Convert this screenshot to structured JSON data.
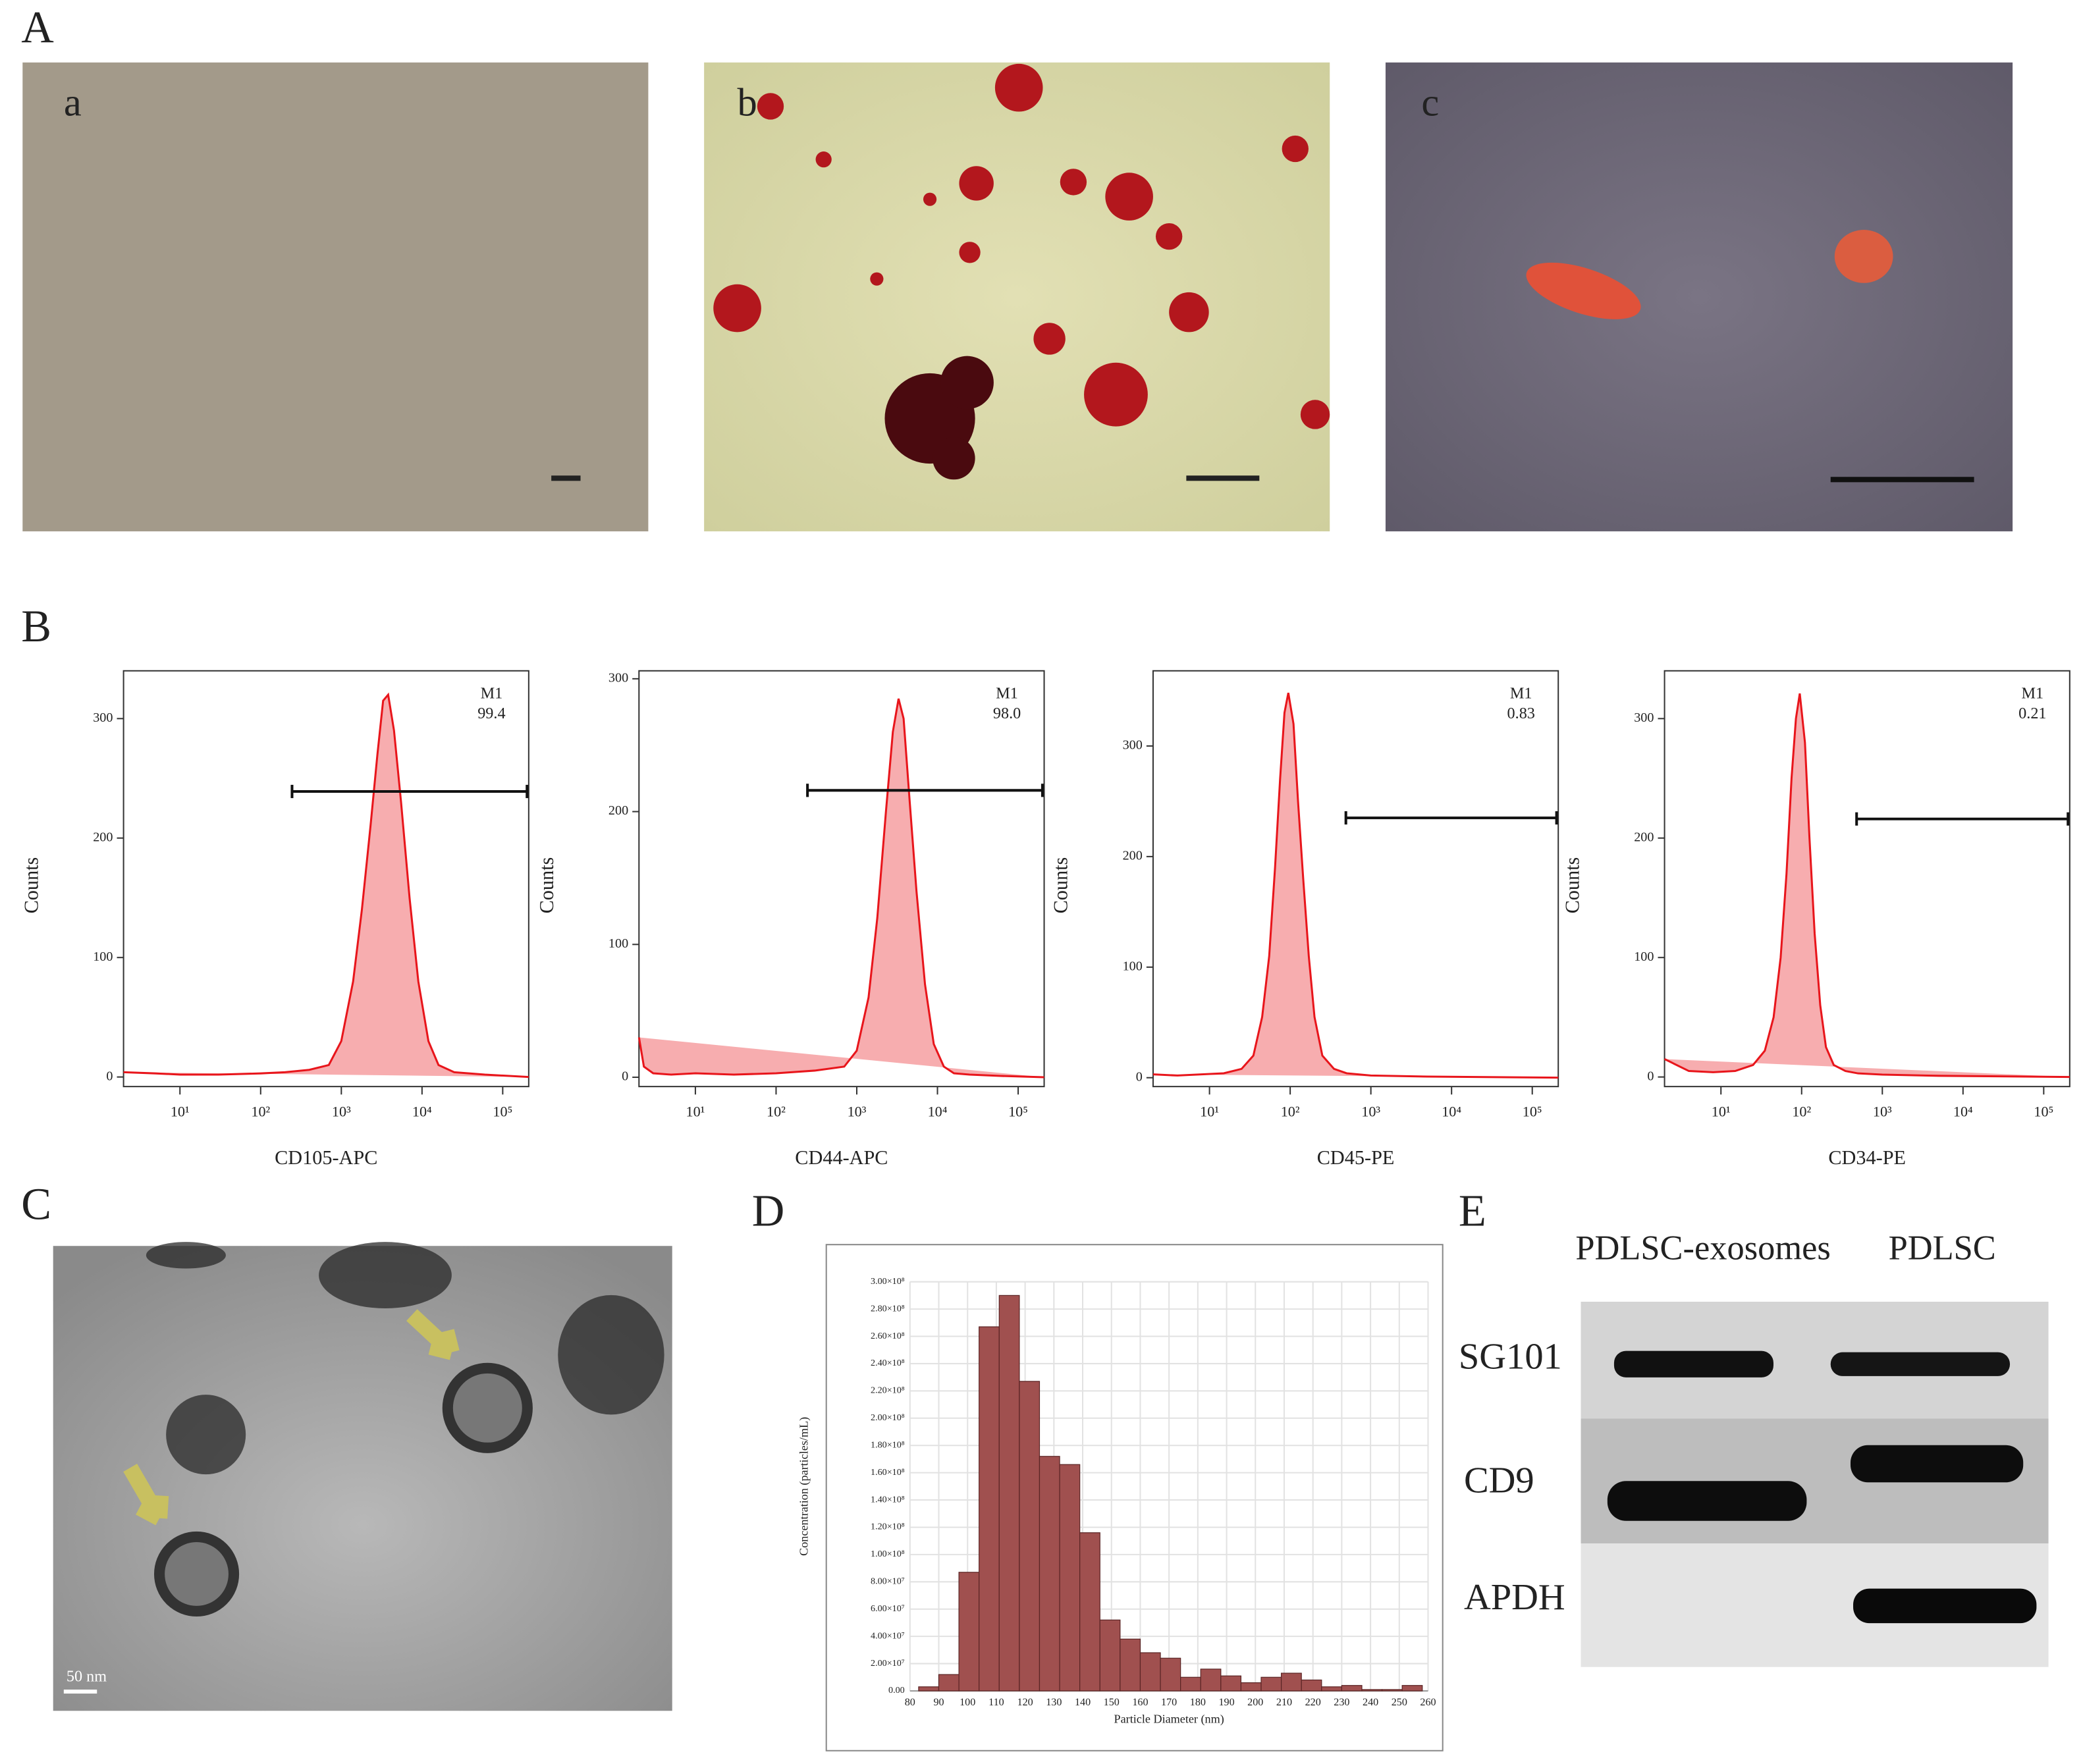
{
  "panel_A": {
    "label": "A",
    "images": [
      "a",
      "b",
      "c"
    ]
  },
  "panel_B": {
    "label": "B"
  },
  "panel_C": {
    "label": "C",
    "scale_bar": "50 nm"
  },
  "panel_D": {
    "label": "D"
  },
  "panel_E": {
    "label": "E",
    "columns": [
      "PDLSC-exosomes",
      "PDLSC"
    ],
    "rows": [
      "SG101",
      "CD9",
      "APDH"
    ]
  },
  "chart_data": [
    {
      "type": "area",
      "x_label": "CD105-APC",
      "y_label": "Counts",
      "log_x": true,
      "color": "#e8151b",
      "xlim": [
        2,
        210000
      ],
      "ylim": [
        -8,
        340
      ],
      "xticks": [
        {
          "value": 10,
          "label": "10¹"
        },
        {
          "value": 100,
          "label": "10²"
        },
        {
          "value": 1000,
          "label": "10³"
        },
        {
          "value": 10000,
          "label": "10⁴"
        },
        {
          "value": 100000,
          "label": "10⁵"
        }
      ],
      "yticks": [
        0,
        100,
        200,
        300
      ],
      "x": [
        2,
        5,
        10,
        30,
        100,
        200,
        400,
        700,
        1000,
        1400,
        1800,
        2300,
        2800,
        3300,
        3800,
        4500,
        5500,
        7000,
        9000,
        12000,
        16000,
        25000,
        60000,
        210000
      ],
      "values": [
        4,
        3,
        2,
        2,
        3,
        4,
        6,
        10,
        30,
        80,
        140,
        210,
        270,
        315,
        320,
        290,
        230,
        150,
        80,
        30,
        10,
        4,
        2,
        0
      ],
      "gate_label": "M1",
      "gate_value": "99.4",
      "gate_x": [
        245,
        200000
      ],
      "gate_y": 239
    },
    {
      "type": "area",
      "x_label": "CD44-APC",
      "y_label": "Counts",
      "log_x": true,
      "color": "#e8151b",
      "xlim": [
        2,
        210000
      ],
      "ylim": [
        -7,
        306
      ],
      "xticks": [
        {
          "value": 10,
          "label": "10¹"
        },
        {
          "value": 100,
          "label": "10²"
        },
        {
          "value": 1000,
          "label": "10³"
        },
        {
          "value": 10000,
          "label": "10⁴"
        },
        {
          "value": 100000,
          "label": "10⁵"
        }
      ],
      "yticks": [
        0,
        100,
        200,
        300
      ],
      "x": [
        2,
        2.3,
        3,
        5,
        10,
        30,
        100,
        300,
        700,
        1000,
        1400,
        1800,
        2300,
        2800,
        3300,
        3800,
        4500,
        5500,
        7000,
        9000,
        12000,
        16000,
        25000,
        60000,
        210000
      ],
      "values": [
        30,
        8,
        3,
        2,
        3,
        2,
        3,
        5,
        8,
        20,
        60,
        120,
        200,
        260,
        285,
        270,
        210,
        140,
        70,
        25,
        8,
        3,
        2,
        1,
        0
      ],
      "gate_label": "M1",
      "gate_value": "98.0",
      "gate_x": [
        245,
        200000
      ],
      "gate_y": 216
    },
    {
      "type": "area",
      "x_label": "CD45-PE",
      "y_label": "Counts",
      "log_x": true,
      "color": "#e8151b",
      "xlim": [
        2,
        210000
      ],
      "ylim": [
        -8,
        368
      ],
      "xticks": [
        {
          "value": 10,
          "label": "10¹"
        },
        {
          "value": 100,
          "label": "10²"
        },
        {
          "value": 1000,
          "label": "10³"
        },
        {
          "value": 10000,
          "label": "10⁴"
        },
        {
          "value": 100000,
          "label": "10⁵"
        }
      ],
      "yticks": [
        0,
        100,
        200,
        300
      ],
      "x": [
        2,
        4,
        8,
        15,
        25,
        35,
        45,
        55,
        65,
        75,
        85,
        95,
        110,
        125,
        145,
        170,
        200,
        250,
        350,
        500,
        1000,
        5000,
        210000
      ],
      "values": [
        3,
        2,
        3,
        4,
        8,
        20,
        55,
        110,
        190,
        270,
        330,
        348,
        320,
        250,
        180,
        110,
        55,
        20,
        8,
        4,
        2,
        1,
        0
      ],
      "gate_label": "M1",
      "gate_value": "0.83",
      "gate_x": [
        490,
        200000
      ],
      "gate_y": 235
    },
    {
      "type": "area",
      "x_label": "CD34-PE",
      "y_label": "Counts",
      "log_x": true,
      "color": "#e8151b",
      "xlim": [
        2,
        210000
      ],
      "ylim": [
        -8,
        340
      ],
      "xticks": [
        {
          "value": 10,
          "label": "10¹"
        },
        {
          "value": 100,
          "label": "10²"
        },
        {
          "value": 1000,
          "label": "10³"
        },
        {
          "value": 10000,
          "label": "10⁴"
        },
        {
          "value": 100000,
          "label": "10⁵"
        }
      ],
      "yticks": [
        0,
        100,
        200,
        300
      ],
      "x": [
        2,
        4,
        8,
        15,
        25,
        35,
        45,
        55,
        65,
        75,
        85,
        95,
        110,
        125,
        145,
        170,
        200,
        250,
        350,
        500,
        1000,
        5000,
        210000
      ],
      "values": [
        15,
        5,
        4,
        5,
        10,
        22,
        50,
        100,
        170,
        250,
        300,
        321,
        280,
        200,
        120,
        60,
        25,
        10,
        5,
        3,
        2,
        1,
        0
      ],
      "gate_label": "M1",
      "gate_value": "0.21",
      "gate_x": [
        480,
        200000
      ],
      "gate_y": 216
    },
    {
      "type": "histogram",
      "x_label": "Particle Diameter (nm)",
      "y_label": "Concentration (particles/mL)",
      "color": "#a0504f",
      "grid": true,
      "xlim": [
        80,
        260
      ],
      "ylim": [
        0,
        300000000
      ],
      "xticks": [
        80,
        90,
        100,
        110,
        120,
        130,
        140,
        150,
        160,
        170,
        180,
        190,
        200,
        210,
        220,
        230,
        240,
        250,
        260
      ],
      "yticks": [
        {
          "value": 0,
          "label": "0.00"
        },
        {
          "value": 20000000,
          "label": "2.00×10⁷"
        },
        {
          "value": 40000000,
          "label": "4.00×10⁷"
        },
        {
          "value": 60000000,
          "label": "6.00×10⁷"
        },
        {
          "value": 80000000,
          "label": "8.00×10⁷"
        },
        {
          "value": 100000000,
          "label": "1.00×10⁸"
        },
        {
          "value": 120000000,
          "label": "1.20×10⁸"
        },
        {
          "value": 140000000,
          "label": "1.40×10⁸"
        },
        {
          "value": 160000000,
          "label": "1.60×10⁸"
        },
        {
          "value": 180000000,
          "label": "1.80×10⁸"
        },
        {
          "value": 200000000,
          "label": "2.00×10⁸"
        },
        {
          "value": 220000000,
          "label": "2.20×10⁸"
        },
        {
          "value": 240000000,
          "label": "2.40×10⁸"
        },
        {
          "value": 260000000,
          "label": "2.60×10⁸"
        },
        {
          "value": 280000000,
          "label": "2.80×10⁸"
        },
        {
          "value": 300000000,
          "label": "3.00×10⁸"
        }
      ],
      "bins": [
        83,
        90,
        97,
        104,
        111,
        118,
        125,
        132,
        139,
        146,
        153,
        160,
        167,
        174,
        181,
        188,
        195,
        202,
        209,
        216,
        223,
        230,
        237,
        244,
        251,
        258
      ],
      "values": [
        3000000,
        12000000,
        87000000,
        267000000,
        290000000,
        227000000,
        172000000,
        166000000,
        116000000,
        52000000,
        38000000,
        28000000,
        24000000,
        10000000,
        16000000,
        11000000,
        6000000,
        10000000,
        13000000,
        8000000,
        3000000,
        4000000,
        1000000,
        1000000,
        4000000
      ]
    }
  ]
}
